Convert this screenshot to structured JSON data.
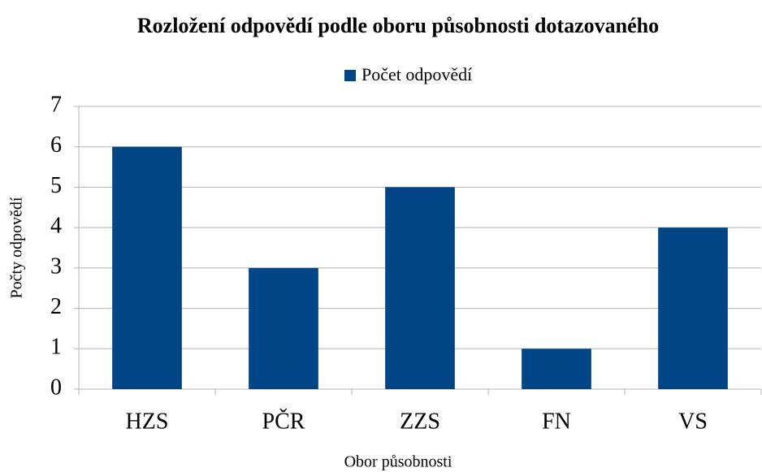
{
  "chart_data": {
    "type": "bar",
    "title": "Rozložení odpovědí podle oboru působnosti dotazovaného",
    "x_label": "Obor působnosti",
    "y_label": "Počty odpovědí",
    "categories": [
      "HZS",
      "PČR",
      "ZZS",
      "FN",
      "VS"
    ],
    "series": [
      {
        "name": "Počet odpovědí",
        "color": "#004586",
        "values": [
          6,
          3,
          5,
          1,
          4
        ]
      }
    ],
    "ylim": [
      0,
      7
    ],
    "yticks": [
      0,
      1,
      2,
      3,
      4,
      5,
      6,
      7
    ],
    "grid": true,
    "legend": "top"
  }
}
